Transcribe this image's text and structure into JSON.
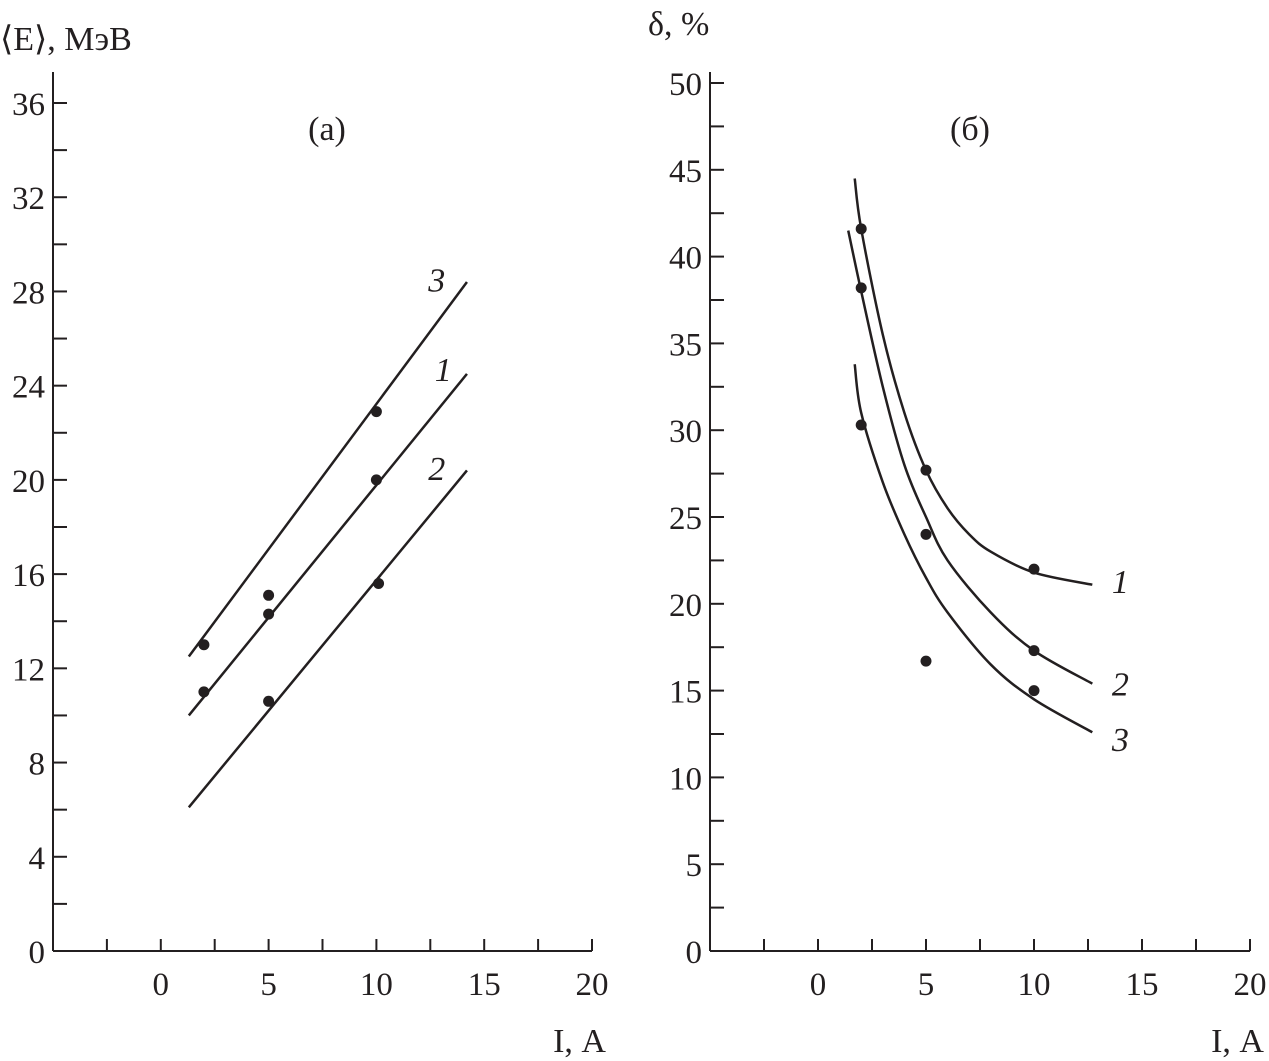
{
  "chart_data": [
    {
      "type": "line",
      "panel_label": "(а)",
      "ylabel": "⟨E⟩, МэВ",
      "xlabel": "I, А",
      "xlim": [
        -5,
        20
      ],
      "ylim": [
        0,
        36
      ],
      "x_ticks": [
        0,
        5,
        10,
        15,
        20
      ],
      "y_ticks": [
        0,
        4,
        8,
        12,
        16,
        20,
        24,
        28,
        32,
        36
      ],
      "grid": false,
      "points": [
        {
          "x": 2,
          "y": 13.0
        },
        {
          "x": 2,
          "y": 11.0
        },
        {
          "x": 5,
          "y": 15.1
        },
        {
          "x": 5,
          "y": 14.3
        },
        {
          "x": 5,
          "y": 10.6
        },
        {
          "x": 10,
          "y": 22.9
        },
        {
          "x": 10,
          "y": 20.0
        },
        {
          "x": 10.1,
          "y": 15.6
        }
      ],
      "series": [
        {
          "label": "3",
          "x": [
            1.3,
            14.2
          ],
          "y": [
            12.5,
            28.4
          ],
          "label_at": [
            12.8,
            28.5
          ]
        },
        {
          "label": "1",
          "x": [
            1.3,
            14.2
          ],
          "y": [
            10.0,
            24.5
          ],
          "label_at": [
            13.1,
            24.7
          ]
        },
        {
          "label": "2",
          "x": [
            1.3,
            14.2
          ],
          "y": [
            6.1,
            20.4
          ],
          "label_at": [
            12.8,
            20.5
          ]
        }
      ]
    },
    {
      "type": "line",
      "panel_label": "(б)",
      "ylabel": "δ, %",
      "xlabel": "I, А",
      "xlim": [
        -5,
        20
      ],
      "ylim": [
        0,
        50
      ],
      "x_ticks": [
        0,
        5,
        10,
        15,
        20
      ],
      "y_ticks": [
        0,
        5,
        10,
        15,
        20,
        25,
        30,
        35,
        40,
        45,
        50
      ],
      "grid": false,
      "points": [
        {
          "x": 2,
          "y": 41.6
        },
        {
          "x": 2,
          "y": 38.2
        },
        {
          "x": 2,
          "y": 30.3
        },
        {
          "x": 5,
          "y": 27.7
        },
        {
          "x": 5,
          "y": 24.0
        },
        {
          "x": 5,
          "y": 16.7
        },
        {
          "x": 10,
          "y": 22.0
        },
        {
          "x": 10,
          "y": 17.3
        },
        {
          "x": 10,
          "y": 15.0
        }
      ],
      "series": [
        {
          "label": "1",
          "x": [
            1.7,
            2,
            3,
            4,
            5,
            6,
            7,
            8,
            10,
            12.7
          ],
          "y": [
            44.5,
            41.6,
            35.5,
            31,
            27.7,
            25.5,
            24,
            23,
            21.8,
            21.1
          ],
          "label_at": [
            14.0,
            21.3
          ]
        },
        {
          "label": "2",
          "x": [
            1.4,
            2,
            3,
            4,
            5,
            6,
            8,
            10,
            12.7
          ],
          "y": [
            41.5,
            38,
            32.5,
            28,
            25,
            22.5,
            19.5,
            17.3,
            15.4
          ],
          "label_at": [
            14.0,
            15.4
          ]
        },
        {
          "label": "3",
          "x": [
            1.7,
            2,
            3,
            4,
            5,
            6,
            8,
            10,
            12.7
          ],
          "y": [
            33.8,
            31,
            27,
            24,
            21.5,
            19.5,
            16.5,
            14.5,
            12.6
          ],
          "label_at": [
            14.0,
            12.2
          ]
        }
      ]
    }
  ]
}
